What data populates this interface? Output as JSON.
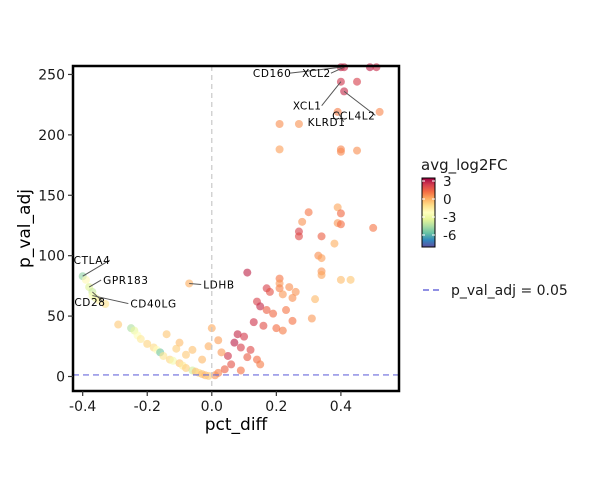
{
  "chart_data": {
    "type": "scatter",
    "title": "",
    "xlabel": "pct_diff",
    "ylabel": "p_val_adj",
    "xlim": [
      -0.43,
      0.58
    ],
    "ylim": [
      -12,
      257
    ],
    "xticks": [
      -0.4,
      -0.2,
      0.0,
      0.2,
      0.4
    ],
    "xtick_labels": [
      "-0.4",
      "-0.2",
      "0.0",
      "0.2",
      "0.4"
    ],
    "yticks": [
      0,
      50,
      100,
      150,
      200,
      250
    ],
    "ytick_labels": [
      "0",
      "50",
      "100",
      "150",
      "200",
      "250"
    ],
    "grid": false,
    "vline_x": 0.0,
    "threshold_line": {
      "y": 1.3,
      "label": "p_val_adj = 0.05",
      "color": "#6b6bdc"
    },
    "color_scale": {
      "title": "avg_log2FC",
      "palette": "Spectral",
      "min": -8,
      "max": 3.5,
      "ticks": [
        3,
        0,
        -3,
        -6
      ],
      "tick_labels": [
        "3",
        "0",
        "-3",
        "-6"
      ]
    },
    "legend_position": "right",
    "points": [
      {
        "x": 0.4,
        "y": 256,
        "c": 2.8
      },
      {
        "x": 0.41,
        "y": 256,
        "c": 2.7
      },
      {
        "x": 0.49,
        "y": 256,
        "c": 2.9
      },
      {
        "x": 0.51,
        "y": 256,
        "c": 2.6
      },
      {
        "x": 0.4,
        "y": 244,
        "c": 2.5
      },
      {
        "x": 0.45,
        "y": 244,
        "c": 2.3
      },
      {
        "x": 0.41,
        "y": 236,
        "c": 2.7
      },
      {
        "x": 0.52,
        "y": 219,
        "c": 0.7
      },
      {
        "x": 0.39,
        "y": 219,
        "c": 0.9
      },
      {
        "x": 0.21,
        "y": 209,
        "c": 0.6
      },
      {
        "x": 0.27,
        "y": 209,
        "c": 0.5
      },
      {
        "x": 0.4,
        "y": 188,
        "c": 0.8
      },
      {
        "x": 0.45,
        "y": 187,
        "c": 0.6
      },
      {
        "x": 0.4,
        "y": 186,
        "c": 0.7
      },
      {
        "x": 0.21,
        "y": 188,
        "c": 0.3
      },
      {
        "x": 0.39,
        "y": 140,
        "c": 0.2
      },
      {
        "x": 0.3,
        "y": 136,
        "c": 1.0
      },
      {
        "x": 0.4,
        "y": 135,
        "c": 1.3
      },
      {
        "x": 0.28,
        "y": 128,
        "c": 0.5
      },
      {
        "x": 0.39,
        "y": 127,
        "c": 0.4
      },
      {
        "x": 0.4,
        "y": 126,
        "c": 1.2
      },
      {
        "x": 0.5,
        "y": 123,
        "c": 1.0
      },
      {
        "x": 0.27,
        "y": 120,
        "c": 2.2
      },
      {
        "x": 0.27,
        "y": 116,
        "c": 2.0
      },
      {
        "x": 0.34,
        "y": 116,
        "c": 1.5
      },
      {
        "x": 0.38,
        "y": 110,
        "c": 0.0
      },
      {
        "x": 0.33,
        "y": 100,
        "c": 0.6
      },
      {
        "x": 0.34,
        "y": 98,
        "c": 0.3
      },
      {
        "x": 0.4,
        "y": 80,
        "c": -0.3
      },
      {
        "x": 0.43,
        "y": 80,
        "c": -0.5
      },
      {
        "x": 0.34,
        "y": 87,
        "c": 0.5
      },
      {
        "x": 0.34,
        "y": 84,
        "c": 0.2
      },
      {
        "x": 0.21,
        "y": 81,
        "c": 1.0
      },
      {
        "x": 0.21,
        "y": 77,
        "c": 0.4
      },
      {
        "x": 0.24,
        "y": 74,
        "c": 0.6
      },
      {
        "x": 0.17,
        "y": 73,
        "c": 2.2
      },
      {
        "x": 0.21,
        "y": 73,
        "c": 0.8
      },
      {
        "x": 0.18,
        "y": 70,
        "c": 1.8
      },
      {
        "x": 0.26,
        "y": 70,
        "c": 0.5
      },
      {
        "x": 0.22,
        "y": 68,
        "c": 0.4
      },
      {
        "x": 0.25,
        "y": 65,
        "c": 0.6
      },
      {
        "x": 0.32,
        "y": 64,
        "c": -0.2
      },
      {
        "x": 0.11,
        "y": 86,
        "c": 2.8
      },
      {
        "x": 0.14,
        "y": 62,
        "c": 2.2
      },
      {
        "x": 0.15,
        "y": 58,
        "c": 2.7
      },
      {
        "x": 0.17,
        "y": 55,
        "c": 1.5
      },
      {
        "x": 0.23,
        "y": 55,
        "c": 1.0
      },
      {
        "x": 0.19,
        "y": 52,
        "c": 1.3
      },
      {
        "x": 0.31,
        "y": 48,
        "c": 0.4
      },
      {
        "x": 0.25,
        "y": 46,
        "c": 1.1
      },
      {
        "x": 0.13,
        "y": 45,
        "c": 2.5
      },
      {
        "x": 0.16,
        "y": 42,
        "c": 1.9
      },
      {
        "x": 0.2,
        "y": 40,
        "c": 1.2
      },
      {
        "x": 0.22,
        "y": 38,
        "c": 0.9
      },
      {
        "x": 0.08,
        "y": 35,
        "c": 2.7
      },
      {
        "x": 0.1,
        "y": 33,
        "c": 2.4
      },
      {
        "x": 0.07,
        "y": 28,
        "c": 2.9
      },
      {
        "x": 0.09,
        "y": 24,
        "c": 2.3
      },
      {
        "x": 0.12,
        "y": 22,
        "c": 2.0
      },
      {
        "x": 0.05,
        "y": 17,
        "c": 2.5
      },
      {
        "x": 0.11,
        "y": 16,
        "c": 1.6
      },
      {
        "x": 0.14,
        "y": 14,
        "c": 1.2
      },
      {
        "x": 0.06,
        "y": 10,
        "c": 1.8
      },
      {
        "x": 0.15,
        "y": 10,
        "c": 0.9
      },
      {
        "x": 0.04,
        "y": 6,
        "c": 1.5
      },
      {
        "x": 0.09,
        "y": 5,
        "c": 1.1
      },
      {
        "x": 0.02,
        "y": 3,
        "c": 0.8
      },
      {
        "x": 0.01,
        "y": 1,
        "c": 0.5
      },
      {
        "x": -0.07,
        "y": 77,
        "c": 0.0
      },
      {
        "x": -0.4,
        "y": 83,
        "c": -5.0
      },
      {
        "x": -0.39,
        "y": 80,
        "c": -2.0
      },
      {
        "x": -0.38,
        "y": 74,
        "c": -3.5
      },
      {
        "x": -0.37,
        "y": 70,
        "c": -4.0
      },
      {
        "x": -0.37,
        "y": 67,
        "c": -2.5
      },
      {
        "x": -0.36,
        "y": 65,
        "c": -3.0
      },
      {
        "x": -0.35,
        "y": 63,
        "c": -1.8
      },
      {
        "x": -0.33,
        "y": 60,
        "c": -1.2
      },
      {
        "x": -0.29,
        "y": 43,
        "c": -0.6
      },
      {
        "x": -0.25,
        "y": 40,
        "c": -4.5
      },
      {
        "x": -0.24,
        "y": 38,
        "c": -3.2
      },
      {
        "x": -0.23,
        "y": 34,
        "c": -2.4
      },
      {
        "x": -0.22,
        "y": 31,
        "c": -1.4
      },
      {
        "x": -0.2,
        "y": 27,
        "c": -0.8
      },
      {
        "x": -0.18,
        "y": 24,
        "c": -1.0
      },
      {
        "x": -0.17,
        "y": 22,
        "c": -2.2
      },
      {
        "x": -0.16,
        "y": 20,
        "c": -5.5
      },
      {
        "x": -0.15,
        "y": 17,
        "c": -1.2
      },
      {
        "x": -0.13,
        "y": 14,
        "c": -0.9
      },
      {
        "x": -0.12,
        "y": 13,
        "c": -2.8
      },
      {
        "x": -0.1,
        "y": 11,
        "c": -0.5
      },
      {
        "x": -0.09,
        "y": 9,
        "c": -1.5
      },
      {
        "x": -0.08,
        "y": 7,
        "c": -0.7
      },
      {
        "x": -0.06,
        "y": 5,
        "c": -3.8
      },
      {
        "x": -0.05,
        "y": 4,
        "c": -0.4
      },
      {
        "x": -0.04,
        "y": 3,
        "c": -1.0
      },
      {
        "x": -0.03,
        "y": 2,
        "c": -0.3
      },
      {
        "x": -0.02,
        "y": 1,
        "c": -0.2
      },
      {
        "x": -0.01,
        "y": 0.5,
        "c": -0.6
      },
      {
        "x": -0.14,
        "y": 35,
        "c": -0.5
      },
      {
        "x": -0.1,
        "y": 28,
        "c": -0.3
      },
      {
        "x": -0.06,
        "y": 22,
        "c": -0.4
      },
      {
        "x": -0.03,
        "y": 14,
        "c": -0.2
      },
      {
        "x": -0.08,
        "y": 18,
        "c": -0.6
      },
      {
        "x": -0.11,
        "y": 23,
        "c": -0.7
      },
      {
        "x": 0.0,
        "y": 40,
        "c": 0.1
      },
      {
        "x": 0.02,
        "y": 30,
        "c": 0.3
      },
      {
        "x": -0.01,
        "y": 25,
        "c": 0.0
      },
      {
        "x": 0.03,
        "y": 20,
        "c": 0.4
      }
    ],
    "annotations": [
      {
        "text": "CD160",
        "x": 0.4,
        "y": 256,
        "side": "left"
      },
      {
        "text": "XCL2",
        "x": 0.41,
        "y": 256,
        "side": "left"
      },
      {
        "text": "XCL1",
        "x": 0.4,
        "y": 244,
        "side": "left"
      },
      {
        "text": "CCL4L2",
        "x": 0.41,
        "y": 236,
        "side": "below"
      },
      {
        "text": "KLRD1",
        "x": 0.39,
        "y": 219,
        "side": "left"
      },
      {
        "text": "LDHB",
        "x": -0.07,
        "y": 77,
        "side": "right"
      },
      {
        "text": "CTLA4",
        "x": -0.4,
        "y": 83,
        "side": "above"
      },
      {
        "text": "GPR183",
        "x": -0.38,
        "y": 74,
        "side": "right"
      },
      {
        "text": "CD28",
        "x": -0.37,
        "y": 70,
        "side": "below"
      },
      {
        "text": "CD40LG",
        "x": -0.37,
        "y": 67,
        "side": "right"
      }
    ]
  }
}
